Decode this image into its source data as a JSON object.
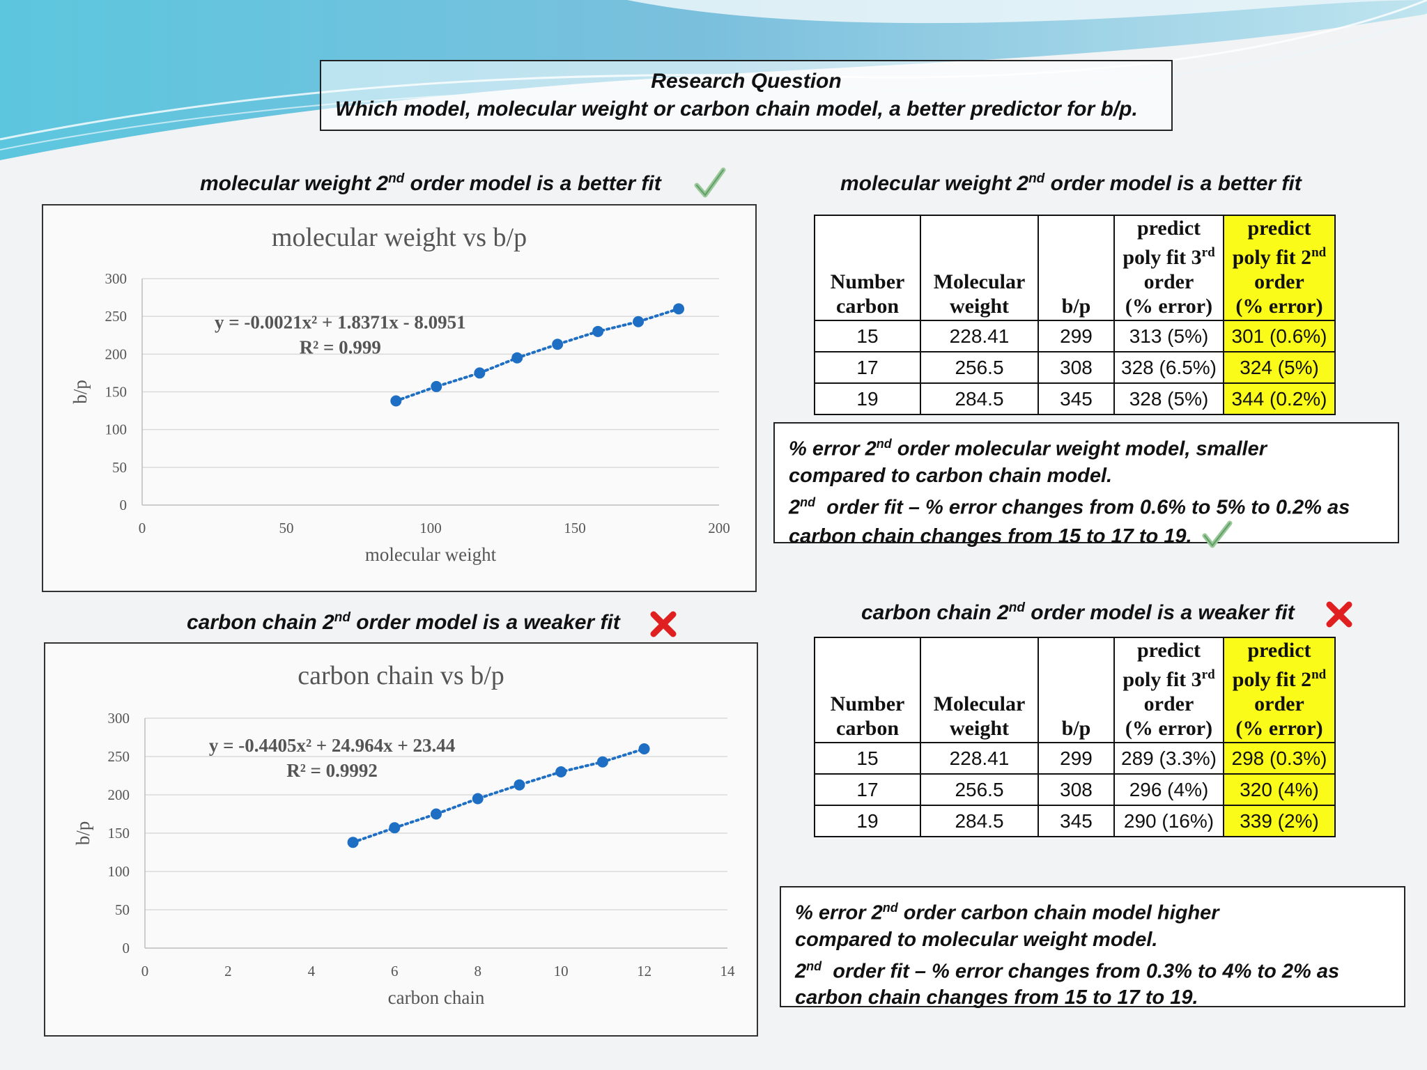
{
  "research": {
    "title": "Research Question",
    "question": "Which model, molecular weight or carbon chain model, a better predictor for b/p."
  },
  "colors": {
    "series": "#1e6fc4",
    "highlight": "#fbfb1a",
    "check": "#7db87d",
    "cross": "#e02020"
  },
  "top_left": {
    "heading_pre": "molecular weight 2",
    "heading_sup": "nd",
    "heading_post": " order model is a better fit",
    "icon": "check-icon"
  },
  "bottom_left": {
    "heading_pre": "carbon chain 2",
    "heading_sup": "nd",
    "heading_post": " order model is a weaker fit",
    "icon": "cross-icon"
  },
  "top_right": {
    "heading_pre": "molecular weight 2",
    "heading_sup": "nd",
    "heading_post": " order model is a better fit",
    "note": {
      "l1_pre": "% error 2",
      "l1_sup": "nd",
      "l1_post": " order molecular weight model, smaller",
      "l2": "compared to carbon chain model.",
      "l3_pre": "2",
      "l3_sup": "nd",
      "l3_post": "  order fit – % error changes from 0.6% to 5% to 0.2% as",
      "l4": "carbon chain changes from 15 to 17 to 19.",
      "icon": "check-icon"
    }
  },
  "bottom_right": {
    "heading_pre": "carbon chain 2",
    "heading_sup": "nd",
    "heading_post": " order model is a weaker fit",
    "icon": "cross-icon",
    "note": {
      "l1_pre": "% error 2",
      "l1_sup": "nd",
      "l1_post": " order carbon chain model higher",
      "l2": "compared to molecular weight model.",
      "l3_pre": "2",
      "l3_sup": "nd",
      "l3_post": "  order fit – % error changes from 0.3% to 4% to 2% as",
      "l4": "carbon chain changes from 15 to 17 to 19."
    }
  },
  "table_headers": {
    "c1a": "Number",
    "c1b": "carbon",
    "c2a": "Molecular",
    "c2b": "weight",
    "c3": "b/p",
    "c4a": "predict",
    "c4b_pre": "poly fit 3",
    "c4b_sup": "rd",
    "c4c": "order",
    "c4d": "(% error)",
    "c5a": "predict",
    "c5b_pre": "poly fit 2",
    "c5b_sup": "nd",
    "c5c": "order",
    "c5d": "(% error)"
  },
  "table1": {
    "rows": [
      [
        "15",
        "228.41",
        "299",
        "313 (5%)",
        "301 (0.6%)"
      ],
      [
        "17",
        "256.5",
        "308",
        "328 (6.5%)",
        "324 (5%)"
      ],
      [
        "19",
        "284.5",
        "345",
        "328 (5%)",
        "344 (0.2%)"
      ]
    ]
  },
  "table2": {
    "rows": [
      [
        "15",
        "228.41",
        "299",
        "289 (3.3%)",
        "298 (0.3%)"
      ],
      [
        "17",
        "256.5",
        "308",
        "296 (4%)",
        "320 (4%)"
      ],
      [
        "19",
        "284.5",
        "345",
        "290 (16%)",
        "339 (2%)"
      ]
    ]
  },
  "chart_data": [
    {
      "type": "scatter",
      "title": "molecular weight vs b/p",
      "xlabel": "molecular weight",
      "ylabel": "b/p",
      "xlim": [
        0,
        200
      ],
      "ylim": [
        0,
        300
      ],
      "xticks": [
        0,
        50,
        100,
        150,
        200
      ],
      "yticks": [
        0,
        50,
        100,
        150,
        200,
        250,
        300
      ],
      "grid": "horizontal",
      "trendline": "polynomial order 2, dotted",
      "equation": "y = -0.0021x² + 1.8371x - 8.0951",
      "r2": "R² = 0.999",
      "x": [
        88,
        102,
        117,
        130,
        144,
        158,
        172,
        186
      ],
      "y": [
        138,
        157,
        175,
        195,
        213,
        230,
        243,
        260
      ]
    },
    {
      "type": "scatter",
      "title": "carbon chain vs b/p",
      "xlabel": "carbon chain",
      "ylabel": "b/p",
      "xlim": [
        0,
        14
      ],
      "ylim": [
        0,
        300
      ],
      "xticks": [
        0,
        2,
        4,
        6,
        8,
        10,
        12,
        14
      ],
      "yticks": [
        0,
        50,
        100,
        150,
        200,
        250,
        300
      ],
      "grid": "horizontal",
      "trendline": "polynomial order 2, dotted",
      "equation": "y = -0.4405x² + 24.964x + 23.44",
      "r2": "R² = 0.9992",
      "x": [
        5,
        6,
        7,
        8,
        9,
        10,
        11,
        12
      ],
      "y": [
        138,
        157,
        175,
        195,
        213,
        230,
        243,
        260
      ]
    }
  ]
}
